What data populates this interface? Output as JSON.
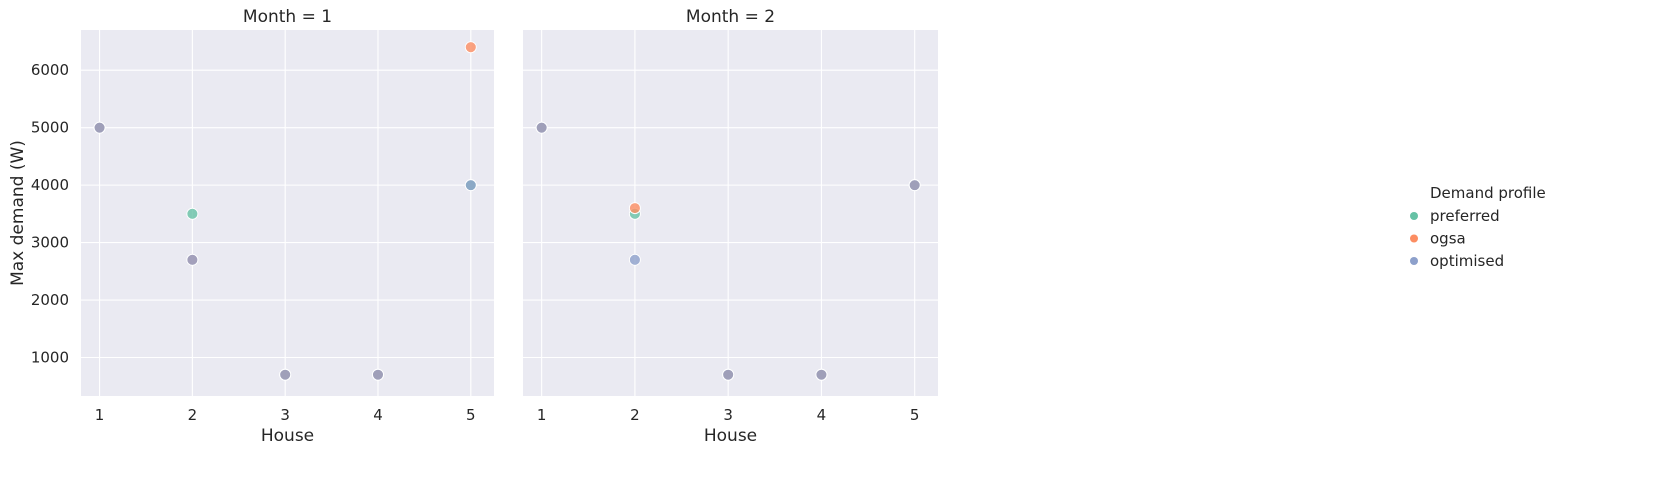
{
  "chart_data": {
    "type": "scatter",
    "ylabel": "Max demand (W)",
    "xlabel": "House",
    "x_ticks": [
      "1",
      "2",
      "3",
      "4",
      "5"
    ],
    "y_ticks": [
      "1000",
      "2000",
      "3000",
      "4000",
      "5000",
      "6000"
    ],
    "xlim": [
      0.8,
      5.25
    ],
    "ylim": [
      330,
      6700
    ],
    "grid": true,
    "background": "#eaeaf2",
    "legend": {
      "title": "Demand profile",
      "placement": "right",
      "entries": [
        {
          "name": "preferred",
          "color": "#66c2a5"
        },
        {
          "name": "ogsa",
          "color": "#fc8d62"
        },
        {
          "name": "optimised",
          "color": "#8da0cb"
        }
      ]
    },
    "panels": [
      {
        "title": "Month = 1",
        "series": [
          {
            "name": "preferred",
            "x": [
              1,
              2,
              3,
              4,
              5
            ],
            "y": [
              5000,
              3500,
              700,
              700,
              4000
            ]
          },
          {
            "name": "ogsa",
            "x": [
              1,
              2,
              3,
              4,
              5
            ],
            "y": [
              5000,
              2700,
              700,
              700,
              6400
            ]
          },
          {
            "name": "optimised",
            "x": [
              1,
              2,
              3,
              4,
              5
            ],
            "y": [
              5000,
              2700,
              700,
              700,
              4000
            ]
          }
        ]
      },
      {
        "title": "Month = 2",
        "series": [
          {
            "name": "preferred",
            "x": [
              1,
              2,
              3,
              4,
              5
            ],
            "y": [
              5000,
              3500,
              700,
              700,
              4000
            ]
          },
          {
            "name": "ogsa",
            "x": [
              1,
              2,
              3,
              4,
              5
            ],
            "y": [
              5000,
              3600,
              700,
              700,
              4000
            ]
          },
          {
            "name": "optimised",
            "x": [
              1,
              2,
              3,
              4,
              5
            ],
            "y": [
              5000,
              2700,
              700,
              700,
              4000
            ]
          }
        ]
      }
    ]
  }
}
